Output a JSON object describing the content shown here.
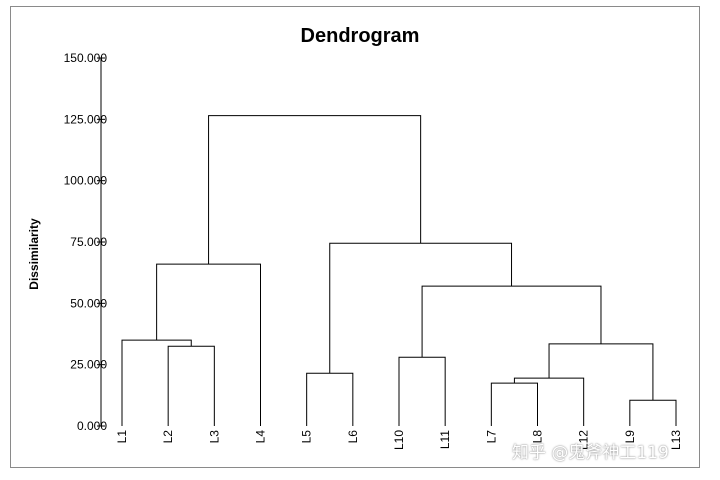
{
  "chart_data": {
    "type": "dendrogram",
    "title": "Dendrogram",
    "ylabel": "Dissimilarity",
    "xlabel": "",
    "ylim": [
      0,
      150
    ],
    "yticks": [
      "0.000",
      "25.000",
      "50.000",
      "75.000",
      "100.000",
      "125.000",
      "150.000"
    ],
    "leaves": [
      "L1",
      "L2",
      "L3",
      "L4",
      "L5",
      "L6",
      "L10",
      "L11",
      "L7",
      "L8",
      "L12",
      "L9",
      "L13"
    ],
    "merges": [
      {
        "id": "A",
        "left": "L2",
        "right": "L3",
        "height": 32.5
      },
      {
        "id": "B",
        "left": "L1",
        "right": "A",
        "height": 35.0
      },
      {
        "id": "C",
        "left": "B",
        "right": "L4",
        "height": 66.0
      },
      {
        "id": "D",
        "left": "L5",
        "right": "L6",
        "height": 21.5
      },
      {
        "id": "E",
        "left": "L10",
        "right": "L11",
        "height": 28.0
      },
      {
        "id": "F",
        "left": "L7",
        "right": "L8",
        "height": 17.5
      },
      {
        "id": "G",
        "left": "F",
        "right": "L12",
        "height": 19.5
      },
      {
        "id": "H",
        "left": "L9",
        "right": "L13",
        "height": 10.5
      },
      {
        "id": "I",
        "left": "G",
        "right": "H",
        "height": 33.5
      },
      {
        "id": "J",
        "left": "E",
        "right": "I",
        "height": 57.0
      },
      {
        "id": "K",
        "left": "D",
        "right": "J",
        "height": 74.5
      },
      {
        "id": "L",
        "left": "C",
        "right": "K",
        "height": 126.5
      }
    ]
  },
  "watermark": "知乎 @鬼斧神工119"
}
